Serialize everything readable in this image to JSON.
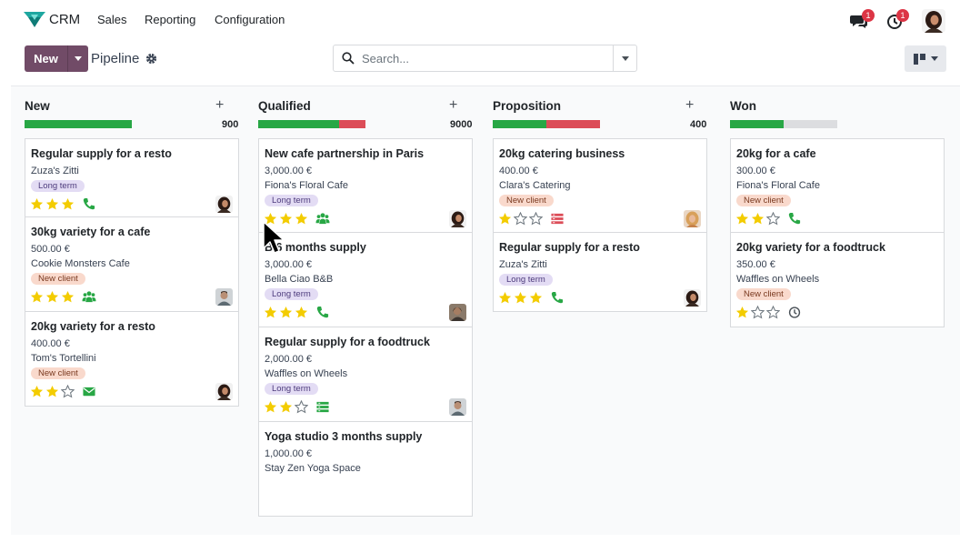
{
  "navbar": {
    "app_name": "CRM",
    "menu": [
      "Sales",
      "Reporting",
      "Configuration"
    ],
    "messages_count": "1",
    "activities_count": "1"
  },
  "control_panel": {
    "new_label": "New",
    "breadcrumb": "Pipeline",
    "search_placeholder": "Search..."
  },
  "colors": {
    "primary": "#714b67",
    "success": "#28a745",
    "danger": "#dc4d58",
    "empty": "#dcdde0",
    "star": "#f3cc00",
    "activity_green": "#28a745",
    "activity_red": "#dc4d58"
  },
  "columns": [
    {
      "title": "New",
      "total": "900",
      "progress": [
        {
          "color": "#28a745",
          "fraction": 1.0
        }
      ],
      "cards": [
        {
          "title": "Regular supply for a resto",
          "amount": "",
          "customer": "Zuza's Zitti",
          "tag": "Long term",
          "tag_kind": "long",
          "stars": 3,
          "activity": "phone-icon",
          "activity_color": "#28a745",
          "avatar": "dark"
        },
        {
          "title": "30kg variety for a cafe",
          "amount": "500.00 €",
          "customer": "Cookie Monsters Cafe",
          "tag": "New client",
          "tag_kind": "new",
          "stars": 3,
          "activity": "users-icon",
          "activity_color": "#28a745",
          "avatar": "light"
        },
        {
          "title": "20kg variety for a resto",
          "amount": "400.00 €",
          "customer": "Tom's Tortellini",
          "tag": "New client",
          "tag_kind": "new",
          "stars": 2,
          "activity": "envelope-icon",
          "activity_color": "#28a745",
          "avatar": "dark"
        }
      ]
    },
    {
      "title": "Qualified",
      "total": "9000",
      "progress": [
        {
          "color": "#28a745",
          "fraction": 0.75
        },
        {
          "color": "#dc4d58",
          "fraction": 0.25
        }
      ],
      "cards": [
        {
          "title": "New cafe partnership in Paris",
          "amount": "3,000.00 €",
          "customer": "Fiona's Floral Cafe",
          "tag": "Long term",
          "tag_kind": "long",
          "stars": 3,
          "activity": "users-icon",
          "activity_color": "#28a745",
          "avatar": "dark"
        },
        {
          "title": "B 6 months supply",
          "amount": "3,000.00 €",
          "customer": "Bella Ciao B&B",
          "tag": "Long term",
          "tag_kind": "long",
          "stars": 3,
          "activity": "phone-icon",
          "activity_color": "#28a745",
          "avatar": "mixed"
        },
        {
          "title": "Regular supply for a foodtruck",
          "amount": "2,000.00 €",
          "customer": "Waffles on Wheels",
          "tag": "Long term",
          "tag_kind": "long",
          "stars": 2,
          "activity": "tasks-icon",
          "activity_color": "#28a745",
          "avatar": "light"
        },
        {
          "title": "Yoga studio 3 months supply",
          "amount": "1,000.00 €",
          "customer": "Stay Zen Yoga Space",
          "tag": "",
          "tag_kind": "",
          "stars": -1,
          "activity": "",
          "activity_color": "",
          "avatar": ""
        }
      ]
    },
    {
      "title": "Proposition",
      "total": "400",
      "progress": [
        {
          "color": "#28a745",
          "fraction": 0.5
        },
        {
          "color": "#dc4d58",
          "fraction": 0.5
        }
      ],
      "cards": [
        {
          "title": "20kg catering business",
          "amount": "400.00 €",
          "customer": "Clara's Catering",
          "tag": "New client",
          "tag_kind": "new",
          "stars": 1,
          "activity": "tasks-icon",
          "activity_color": "#dc4d58",
          "avatar": "blonde"
        },
        {
          "title": "Regular supply for a resto",
          "amount": "",
          "customer": "Zuza's Zitti",
          "tag": "Long term",
          "tag_kind": "long",
          "stars": 3,
          "activity": "phone-icon",
          "activity_color": "#28a745",
          "avatar": "dark"
        }
      ]
    },
    {
      "title": "Won",
      "total": "",
      "progress": [
        {
          "color": "#28a745",
          "fraction": 0.5
        },
        {
          "color": "#dcdde0",
          "fraction": 0.5
        }
      ],
      "cards": [
        {
          "title": "20kg for a cafe",
          "amount": "300.00 €",
          "customer": "Fiona's Floral Cafe",
          "tag": "New client",
          "tag_kind": "new",
          "stars": 2,
          "activity": "phone-icon",
          "activity_color": "#28a745",
          "avatar": ""
        },
        {
          "title": "20kg variety for a foodtruck",
          "amount": "350.00 €",
          "customer": "Waffles on Wheels",
          "tag": "New client",
          "tag_kind": "new",
          "stars": 1,
          "activity": "clock-icon",
          "activity_color": "#495057",
          "avatar": ""
        }
      ]
    }
  ]
}
